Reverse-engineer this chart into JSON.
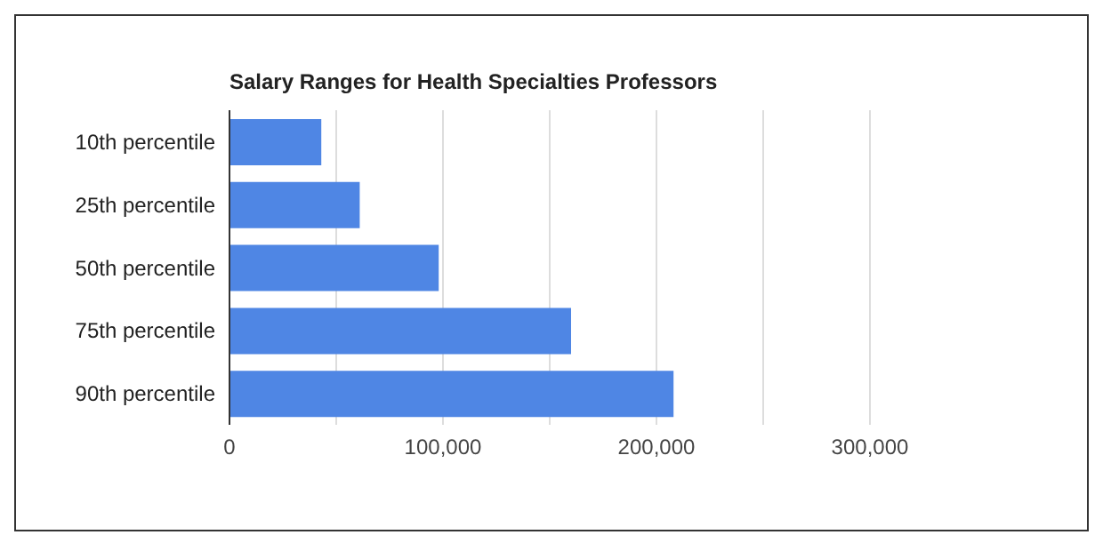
{
  "chart_data": {
    "type": "bar",
    "orientation": "horizontal",
    "title": "Salary Ranges for Health Specialties Professors",
    "categories": [
      "10th percentile",
      "25th percentile",
      "50th percentile",
      "75th percentile",
      "90th percentile"
    ],
    "values": [
      43000,
      61000,
      98000,
      160000,
      208000
    ],
    "color": "#4f86e4",
    "xlim": [
      0,
      300000
    ],
    "xticks": [
      0,
      {
        "value": 50000,
        "label": null
      },
      {
        "value": 100000,
        "label": "100,000"
      },
      {
        "value": 150000,
        "label": null
      },
      {
        "value": 200000,
        "label": "200,000"
      },
      {
        "value": 250000,
        "label": null
      },
      {
        "value": 300000,
        "label": "300,000"
      }
    ],
    "grid": "x"
  }
}
